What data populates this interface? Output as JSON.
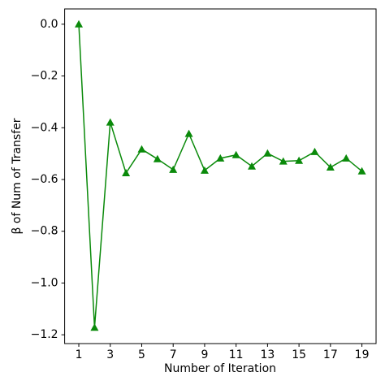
{
  "chart_data": {
    "type": "line",
    "x_label": "Number of Iteration",
    "y_label": "β of Num of Transfer",
    "x": [
      1,
      2,
      3,
      4,
      5,
      6,
      7,
      8,
      9,
      10,
      11,
      12,
      13,
      14,
      15,
      16,
      17,
      18,
      19
    ],
    "series": [
      {
        "color": "#0a8a0a",
        "marker": "triangle",
        "values": [
          0,
          -1.172,
          -0.379,
          -0.575,
          -0.483,
          -0.521,
          -0.562,
          -0.423,
          -0.565,
          -0.518,
          -0.505,
          -0.549,
          -0.499,
          -0.53,
          -0.527,
          -0.493,
          -0.553,
          -0.518,
          -0.568
        ]
      }
    ],
    "xlim": [
      0.1,
      19.9
    ],
    "ylim": [
      -1.234,
      0.059
    ],
    "xticks": [
      1,
      3,
      5,
      7,
      9,
      11,
      13,
      15,
      17,
      19
    ],
    "yticks": [
      {
        "value": 0,
        "label": "0.0"
      },
      {
        "value": -0.2,
        "label": "−0.2"
      },
      {
        "value": -0.4,
        "label": "−0.4"
      },
      {
        "value": -0.6,
        "label": "−0.6"
      },
      {
        "value": -0.8,
        "label": "−0.8"
      },
      {
        "value": -1.0,
        "label": "−1.0"
      },
      {
        "value": -1.2,
        "label": "−1.2"
      }
    ],
    "grid": false
  }
}
